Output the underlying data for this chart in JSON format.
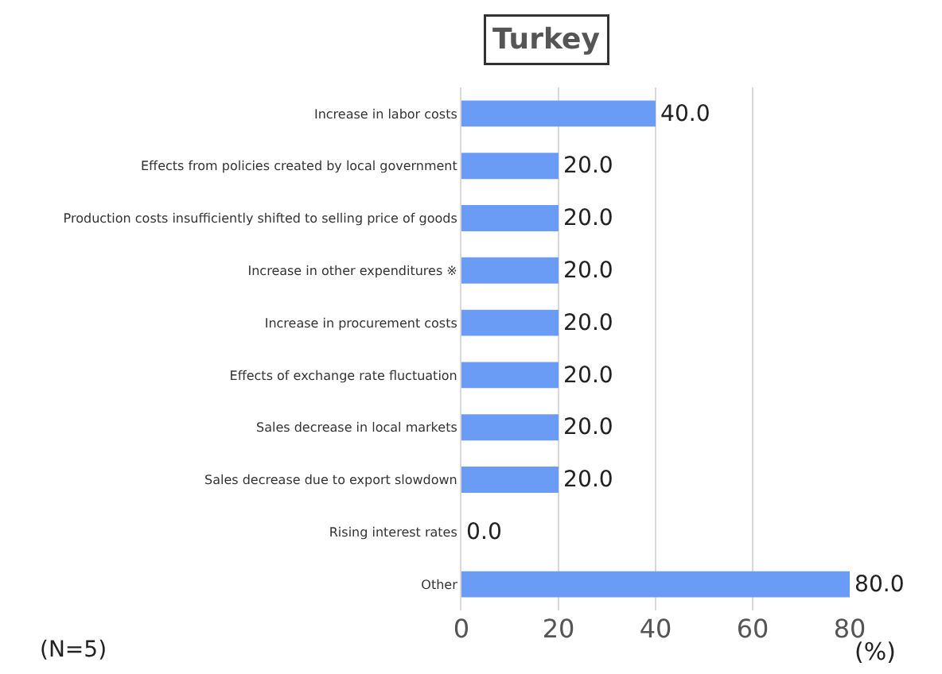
{
  "chart_data": {
    "type": "bar",
    "orientation": "horizontal",
    "title": "Turkey",
    "xlabel": "(%)",
    "categories": [
      "Increase in labor costs",
      "Effects from policies created by local government",
      "Production costs insufficiently shifted to selling price of goods",
      "Increase in other expenditures ※",
      "Increase in procurement costs",
      "Effects of exchange rate fluctuation",
      "Sales decrease in local markets",
      "Sales decrease due to export slowdown",
      "Rising interest rates",
      "Other"
    ],
    "values": [
      40,
      20,
      20,
      20,
      20,
      20,
      20,
      20,
      0,
      80
    ],
    "value_labels": [
      "40.0",
      "20.0",
      "20.0",
      "20.0",
      "20.0",
      "20.0",
      "20.0",
      "20.0",
      "0.0",
      "80.0"
    ],
    "color": "#6b9cf5",
    "xlim": [
      0,
      80
    ],
    "xticks": [
      0,
      20,
      40,
      60,
      80
    ],
    "grid": "x",
    "annotations": [
      "(N=5)"
    ]
  }
}
